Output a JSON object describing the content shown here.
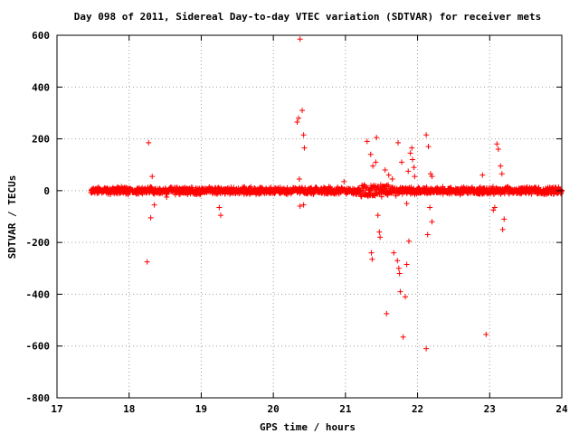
{
  "chart_data": {
    "type": "scatter",
    "title": "Day 098 of 2011, Sidereal Day-to-day VTEC variation (SDTVAR) for receiver mets",
    "xlabel": "GPS time / hours",
    "ylabel": "SDTVAR / TECUs",
    "xlim": [
      17,
      24
    ],
    "ylim": [
      -800,
      600
    ],
    "x_ticks": [
      "17",
      "18",
      "19",
      "20",
      "21",
      "22",
      "23",
      "24"
    ],
    "y_ticks": [
      "600",
      "400",
      "200",
      "0",
      "-200",
      "-400",
      "-600",
      "-800"
    ],
    "grid": true,
    "marker": "plus",
    "series_color": "#ff0000",
    "baseline_band": {
      "x_range": [
        17.47,
        24.0
      ],
      "typical_spread": 12
    },
    "outliers": [
      [
        18.27,
        185
      ],
      [
        18.32,
        55
      ],
      [
        18.3,
        -105
      ],
      [
        18.25,
        -275
      ],
      [
        18.35,
        -55
      ],
      [
        18.52,
        -25
      ],
      [
        19.25,
        -65
      ],
      [
        19.27,
        -95
      ],
      [
        20.33,
        265
      ],
      [
        20.35,
        280
      ],
      [
        20.4,
        310
      ],
      [
        20.42,
        215
      ],
      [
        20.43,
        165
      ],
      [
        20.36,
        45
      ],
      [
        20.37,
        -60
      ],
      [
        20.42,
        -55
      ],
      [
        20.37,
        585
      ],
      [
        20.98,
        35
      ],
      [
        21.3,
        190
      ],
      [
        21.35,
        140
      ],
      [
        21.42,
        110
      ],
      [
        21.43,
        205
      ],
      [
        21.38,
        95
      ],
      [
        21.36,
        -240
      ],
      [
        21.37,
        -265
      ],
      [
        21.45,
        -95
      ],
      [
        21.47,
        -160
      ],
      [
        21.48,
        -180
      ],
      [
        21.55,
        80
      ],
      [
        21.57,
        -475
      ],
      [
        21.67,
        -240
      ],
      [
        21.72,
        -270
      ],
      [
        21.74,
        -300
      ],
      [
        21.75,
        -320
      ],
      [
        21.73,
        185
      ],
      [
        21.78,
        110
      ],
      [
        21.76,
        -390
      ],
      [
        21.83,
        -410
      ],
      [
        21.85,
        -285
      ],
      [
        21.8,
        -565
      ],
      [
        21.87,
        75
      ],
      [
        21.9,
        145
      ],
      [
        21.92,
        165
      ],
      [
        21.93,
        120
      ],
      [
        21.95,
        90
      ],
      [
        21.96,
        55
      ],
      [
        21.88,
        -195
      ],
      [
        21.85,
        -50
      ],
      [
        21.65,
        45
      ],
      [
        21.7,
        -20
      ],
      [
        21.6,
        60
      ],
      [
        22.12,
        215
      ],
      [
        22.15,
        170
      ],
      [
        22.18,
        65
      ],
      [
        22.2,
        55
      ],
      [
        22.17,
        -65
      ],
      [
        22.2,
        -120
      ],
      [
        22.14,
        -170
      ],
      [
        22.12,
        -610
      ],
      [
        22.35,
        15
      ],
      [
        22.9,
        60
      ],
      [
        22.95,
        -555
      ],
      [
        23.05,
        -75
      ],
      [
        23.07,
        -65
      ],
      [
        23.1,
        180
      ],
      [
        23.12,
        160
      ],
      [
        23.15,
        95
      ],
      [
        23.17,
        65
      ],
      [
        23.2,
        -110
      ],
      [
        23.18,
        -150
      ]
    ]
  }
}
